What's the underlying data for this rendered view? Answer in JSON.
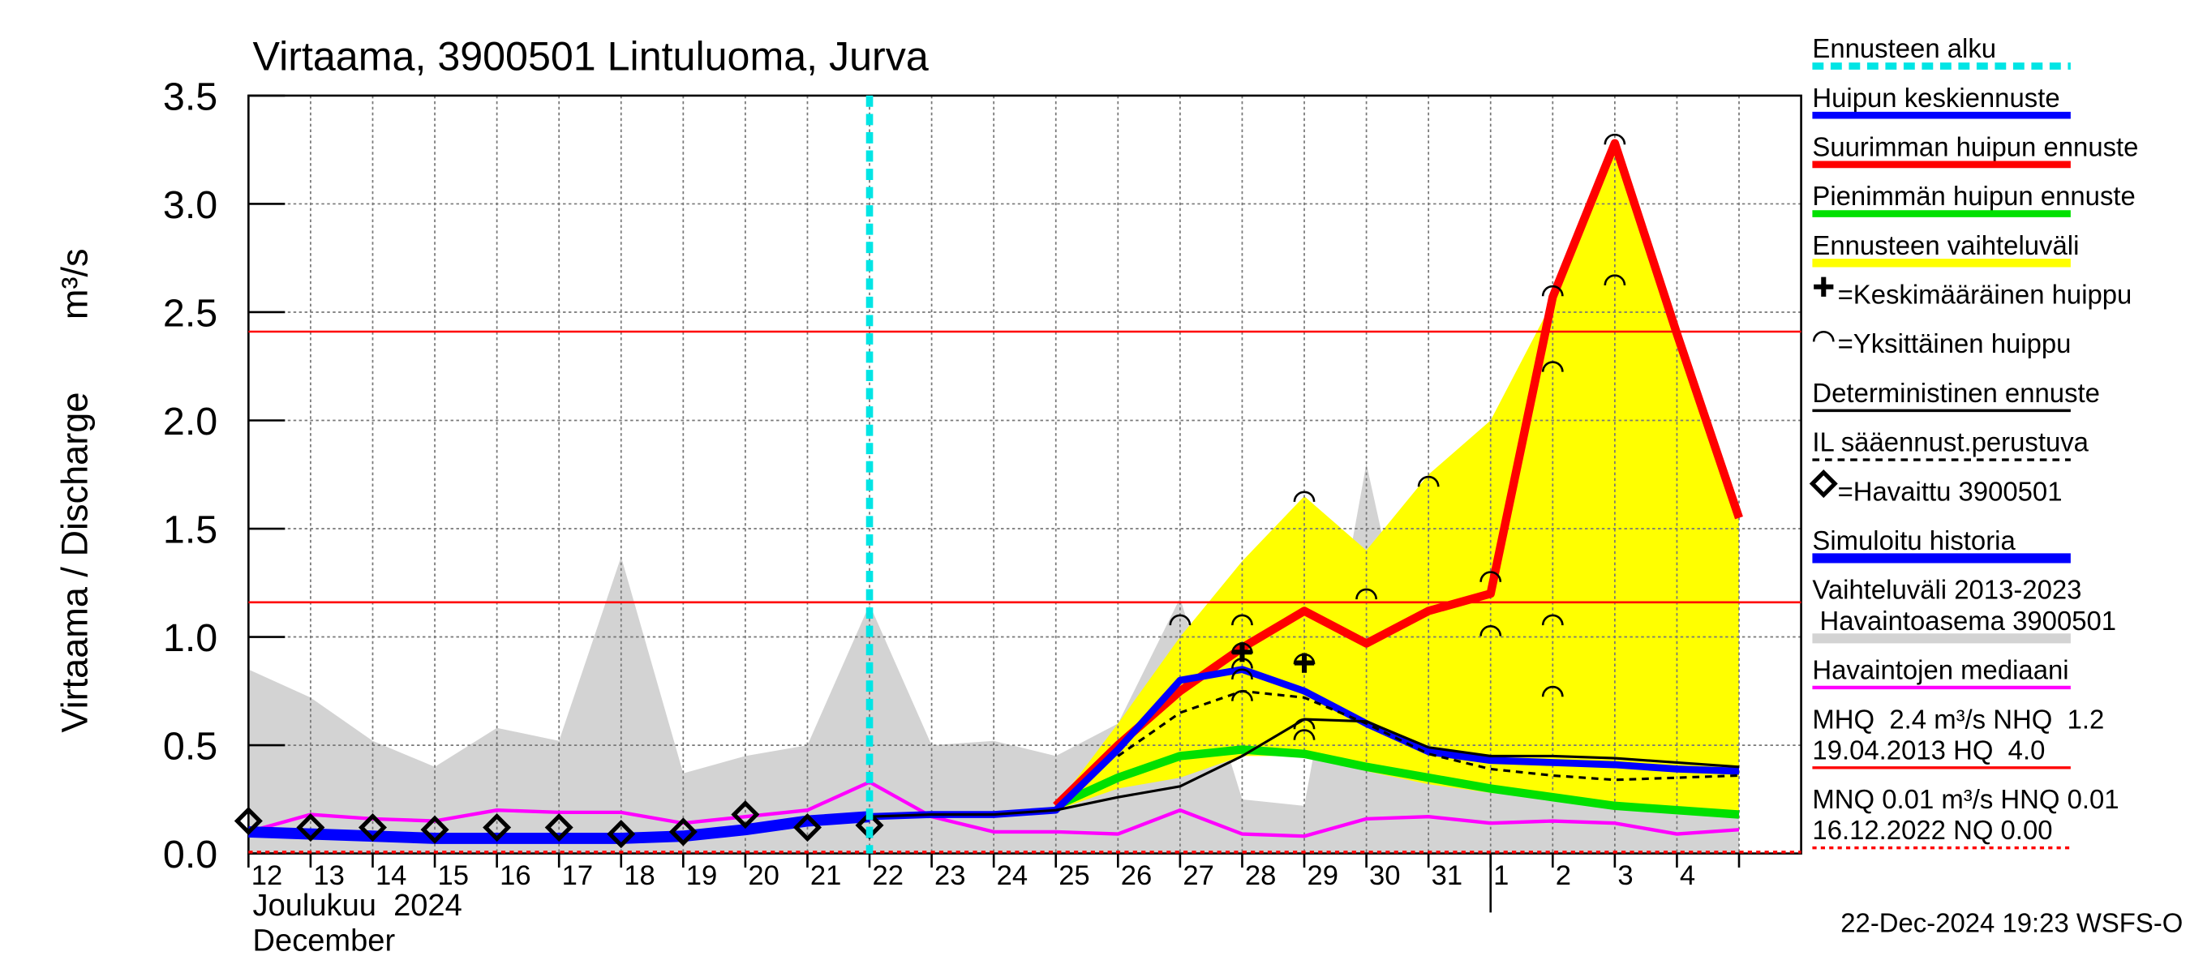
{
  "chart_data": {
    "type": "line",
    "title": "Virtaama, 3900501 Lintuluoma, Jurva",
    "ylabel": "Virtaama / Discharge",
    "yunit": "m³/s",
    "xlabel": [
      "Joulukuu  2024",
      "December"
    ],
    "footer": "22-Dec-2024 19:23 WSFS-O",
    "categories": [
      "12",
      "13",
      "14",
      "15",
      "16",
      "17",
      "18",
      "19",
      "20",
      "21",
      "22",
      "23",
      "24",
      "25",
      "26",
      "27",
      "28",
      "29",
      "30",
      "31",
      "1",
      "2",
      "3",
      "4",
      null
    ],
    "ylim": [
      0,
      3.5
    ],
    "yticks": [
      {
        "value": 0,
        "label": "0.0"
      },
      0.5,
      {
        "value": 1,
        "label": "1.0"
      },
      1.5,
      {
        "value": 2,
        "label": "2.0"
      },
      2.5,
      {
        "value": 3,
        "label": "3.0"
      },
      3.5
    ],
    "grid": true,
    "forecast_start": "22",
    "forecast_start_color": "#00e5e5",
    "hlines": [
      {
        "value": 2.41,
        "color": "#ff0000"
      },
      {
        "value": 1.16,
        "color": "#ff0000"
      }
    ],
    "series": [
      {
        "kind": "area",
        "color": "#d3d3d3",
        "values": [
          0.85,
          0.72,
          0.52,
          0.4,
          0.58,
          0.52,
          1.37,
          0.37,
          0.45,
          0.5,
          1.15,
          0.5,
          0.52,
          0.45,
          0.6,
          1.18,
          0.25,
          0.22,
          1.8,
          0.5,
          1.1,
          0.4,
          0.5,
          0.4,
          0.45
        ]
      },
      {
        "kind": "area",
        "color": "#ffff00",
        "values": [
          null,
          null,
          null,
          null,
          null,
          null,
          null,
          null,
          null,
          null,
          null,
          null,
          null,
          0.22,
          0.6,
          1.0,
          1.35,
          1.65,
          1.4,
          1.75,
          2.0,
          2.55,
          3.3,
          2.4,
          1.55
        ],
        "lower": [
          null,
          null,
          null,
          null,
          null,
          null,
          null,
          null,
          null,
          null,
          null,
          null,
          null,
          0.2,
          0.3,
          0.35,
          0.45,
          0.45,
          0.38,
          0.32,
          0.28,
          0.25,
          0.22,
          0.2,
          0.18
        ]
      },
      {
        "kind": "line",
        "color": "#ff00ff",
        "width": 2.5,
        "values": [
          0.1,
          0.18,
          0.16,
          0.15,
          0.2,
          0.19,
          0.19,
          0.14,
          0.17,
          0.2,
          0.33,
          0.17,
          0.1,
          0.1,
          0.09,
          0.2,
          0.09,
          0.08,
          0.16,
          0.17,
          0.14,
          0.15,
          0.14,
          0.09,
          0.11
        ]
      },
      {
        "kind": "line",
        "color": "#00e000",
        "width": 6,
        "values": [
          null,
          null,
          null,
          null,
          null,
          null,
          null,
          null,
          null,
          null,
          null,
          null,
          null,
          0.22,
          0.35,
          0.45,
          0.48,
          0.46,
          0.4,
          0.35,
          0.3,
          0.26,
          0.22,
          0.2,
          0.18
        ]
      },
      {
        "kind": "line",
        "color": "#ff0000",
        "width": 6,
        "values": [
          null,
          null,
          null,
          null,
          null,
          null,
          null,
          null,
          null,
          null,
          null,
          null,
          null,
          0.22,
          0.5,
          0.75,
          0.95,
          1.12,
          0.97,
          1.12,
          1.2,
          2.57,
          3.28,
          2.4,
          1.55
        ]
      },
      {
        "kind": "line",
        "color": "#0000ff",
        "width": 8,
        "values": [
          0.1,
          0.09,
          0.08,
          0.07,
          0.07,
          0.07,
          0.07,
          0.08,
          0.11,
          0.15,
          0.17,
          null,
          null,
          null,
          null,
          null,
          null,
          null,
          null,
          null,
          null,
          null,
          null,
          null,
          null
        ]
      },
      {
        "kind": "line",
        "color": "#0000ff",
        "width": 5,
        "values": [
          null,
          null,
          null,
          null,
          null,
          null,
          null,
          null,
          null,
          null,
          0.17,
          0.18,
          0.18,
          0.2,
          0.48,
          0.8,
          0.85,
          0.75,
          0.6,
          0.47,
          0.43,
          0.42,
          0.41,
          0.39,
          0.38
        ]
      },
      {
        "kind": "line",
        "color": "#000000",
        "width": 1.8,
        "values": [
          null,
          null,
          null,
          null,
          null,
          null,
          null,
          null,
          null,
          null,
          0.17,
          0.18,
          0.18,
          0.2,
          0.26,
          0.31,
          0.45,
          0.62,
          0.61,
          0.49,
          0.45,
          0.45,
          0.44,
          0.42,
          0.4
        ]
      },
      {
        "kind": "line",
        "color": "#000000",
        "width": 1.8,
        "dash": "5 4",
        "values": [
          null,
          null,
          null,
          null,
          null,
          null,
          null,
          null,
          null,
          null,
          null,
          null,
          null,
          null,
          0.45,
          0.65,
          0.75,
          0.72,
          0.6,
          0.46,
          0.39,
          0.36,
          0.34,
          0.35,
          0.36
        ]
      },
      {
        "kind": "diamond",
        "color": "#000000",
        "values": [
          0.15,
          0.12,
          0.12,
          0.11,
          0.12,
          0.12,
          0.09,
          0.1,
          0.18,
          0.12,
          0.13,
          null,
          null,
          null,
          null,
          null,
          null,
          null,
          null,
          null,
          null,
          null,
          null,
          null,
          null
        ]
      },
      {
        "kind": "arc",
        "color": "#000000",
        "points": [
          {
            "x": "27",
            "y": 1.08
          },
          {
            "x": "28",
            "y": 1.08
          },
          {
            "x": "28",
            "y": 0.95
          },
          {
            "x": "28",
            "y": 0.88
          },
          {
            "x": "28",
            "y": 0.83
          },
          {
            "x": "28",
            "y": 0.73
          },
          {
            "x": "29",
            "y": 1.65
          },
          {
            "x": "29",
            "y": 0.9
          },
          {
            "x": "29",
            "y": 0.6
          },
          {
            "x": "29",
            "y": 0.55
          },
          {
            "x": "30",
            "y": 1.2
          },
          {
            "x": "31",
            "y": 1.72
          },
          {
            "x": "1",
            "y": 1.28
          },
          {
            "x": "1",
            "y": 1.03
          },
          {
            "x": "2",
            "y": 2.6
          },
          {
            "x": "2",
            "y": 2.25
          },
          {
            "x": "2",
            "y": 1.08
          },
          {
            "x": "2",
            "y": 0.75
          },
          {
            "x": "3",
            "y": 3.3
          },
          {
            "x": "3",
            "y": 2.65
          }
        ]
      },
      {
        "kind": "plus",
        "color": "#000000",
        "points": [
          {
            "x": "28",
            "y": 0.93
          },
          {
            "x": "29",
            "y": 0.88
          }
        ]
      }
    ],
    "legend": [
      {
        "lines": [
          "Ennusteen alku"
        ],
        "color": "#00e5e5",
        "dash": "8 5",
        "width": 5
      },
      {
        "lines": [
          "Huipun keskiennuste"
        ],
        "color": "#0000ff",
        "width": 5
      },
      {
        "lines": [
          "Suurimman huipun ennuste"
        ],
        "color": "#ff0000",
        "width": 5
      },
      {
        "lines": [
          "Pienimmän huipun ennuste"
        ],
        "color": "#00e000",
        "width": 5
      },
      {
        "lines": [
          "Ennusteen vaihteluväli"
        ],
        "color": "#ffff00",
        "width": 6
      },
      {
        "lines": [
          "=Keskimääräinen huippu"
        ],
        "marker": "plus"
      },
      {
        "lines": [
          "=Yksittäinen huippu"
        ],
        "marker": "arc"
      },
      {
        "lines": [
          "Deterministinen ennuste"
        ],
        "color": "#000000",
        "width": 2
      },
      {
        "lines": [
          "IL sääennust.perustuva"
        ],
        "color": "#000000",
        "dash": "5 4",
        "width": 2
      },
      {
        "lines": [
          "=Havaittu 3900501"
        ],
        "marker": "diamond"
      },
      {
        "lines": [
          "Simuloitu historia"
        ],
        "color": "#0000ff",
        "width": 7
      },
      {
        "lines": [
          "Vaihteluväli 2013-2023",
          " Havaintoasema 3900501"
        ],
        "color": "#d3d3d3",
        "width": 7
      },
      {
        "lines": [
          "Havaintojen mediaani"
        ],
        "color": "#ff00ff",
        "width": 2.5
      },
      {
        "lines": [
          "MHQ  2.4 m³/s NHQ  1.2",
          "19.04.2013 HQ  4.0"
        ],
        "color": "#ff0000",
        "width": 2
      },
      {
        "lines": [
          "MNQ 0.01 m³/s HNQ 0.01",
          "16.12.2022 NQ 0.00"
        ],
        "color": "#ff0000",
        "dash": "3 3",
        "width": 2
      }
    ]
  }
}
